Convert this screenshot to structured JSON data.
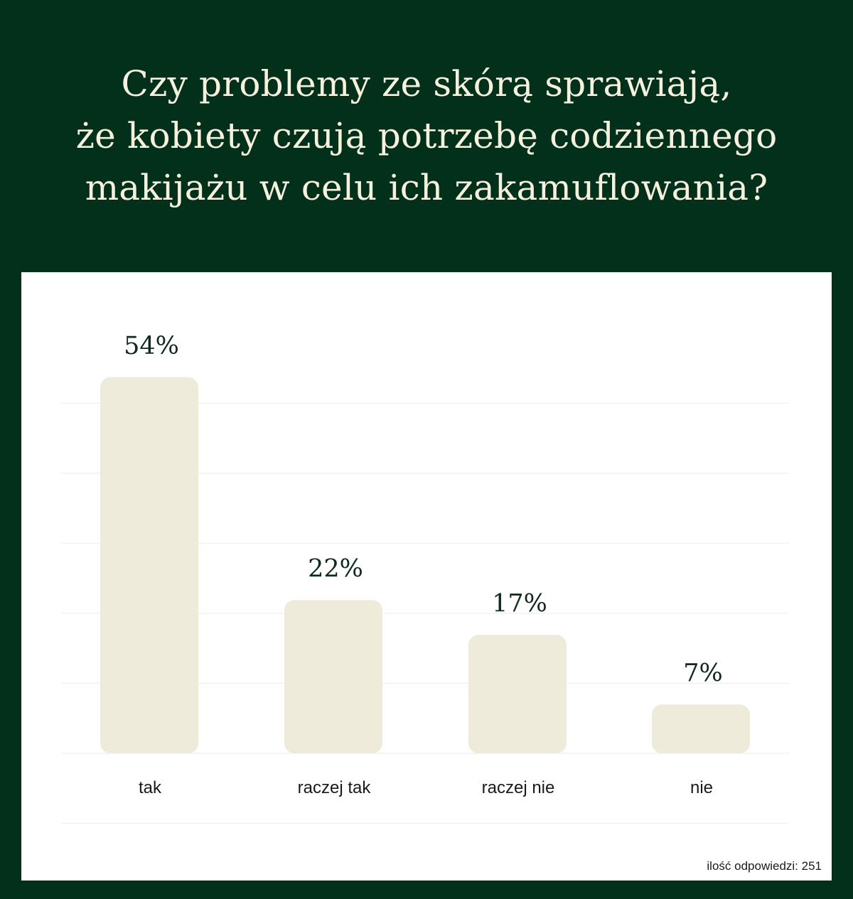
{
  "title": {
    "lines": [
      "Czy problemy ze skórą sprawiają,",
      "że kobiety czują potrzebę codziennego",
      "makijażu w celu ich zakamuflowania?"
    ]
  },
  "footnote": "ilość odpowiedzi: 251",
  "colors": {
    "background": "#03301a",
    "panel": "#ffffff",
    "bar": "#efebdb",
    "title_text": "#f6f1df",
    "value_text": "#0e2a1a",
    "gridline": "#f2f2ee"
  },
  "chart_data": {
    "type": "bar",
    "categories": [
      "tak",
      "raczej tak",
      "raczej nie",
      "nie"
    ],
    "values": [
      54,
      22,
      17,
      7
    ],
    "value_labels": [
      "54%",
      "22%",
      "17%",
      "7%"
    ],
    "ylim": [
      0,
      60
    ],
    "grid": true
  }
}
